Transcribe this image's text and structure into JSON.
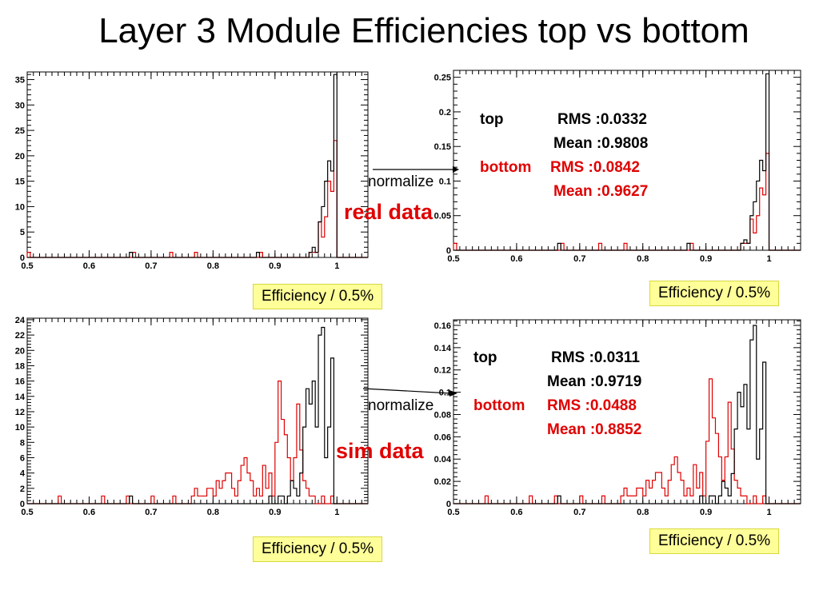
{
  "slide": {
    "title": "Layer 3 Module Efficiencies top vs bottom",
    "normalize_label": "normalize",
    "real_label": "real data",
    "sim_label": "sim data",
    "efficiency_label": "Efficiency / 0.5%"
  },
  "colors": {
    "top": "#000000",
    "bottom": "#e00000",
    "label_bg": "#ffff99"
  },
  "stats": {
    "real": {
      "top_label": "top",
      "top_rms": "RMS :0.0332",
      "top_mean": "Mean :0.9808",
      "bottom_label": "bottom",
      "bottom_rms": "RMS :0.0842",
      "bottom_mean": "Mean :0.9627"
    },
    "sim": {
      "top_label": "top",
      "top_rms": "RMS :0.0311",
      "top_mean": "Mean :0.9719",
      "bottom_label": "bottom",
      "bottom_rms": "RMS :0.0488",
      "bottom_mean": "Mean :0.8852"
    }
  },
  "chart_data": [
    {
      "id": "real-raw",
      "type": "histogram",
      "x_ticks": [
        "0.5",
        "0.6",
        "0.7",
        "0.8",
        "0.9",
        "1"
      ],
      "xlim": [
        0.5,
        1.05
      ],
      "ylim": [
        0,
        36.5
      ],
      "y_ticks": [
        "0",
        "5",
        "10",
        "15",
        "20",
        "25",
        "30",
        "35"
      ],
      "y_tick_values": [
        0,
        5,
        10,
        15,
        20,
        25,
        30,
        35
      ],
      "series": [
        {
          "role": "top",
          "bins": [
            [
              0.665,
              1
            ],
            [
              0.87,
              1
            ],
            [
              0.955,
              1
            ],
            [
              0.96,
              2
            ],
            [
              0.965,
              1
            ],
            [
              0.97,
              7
            ],
            [
              0.975,
              10
            ],
            [
              0.98,
              15
            ],
            [
              0.985,
              19
            ],
            [
              0.99,
              17
            ],
            [
              0.995,
              36
            ]
          ]
        },
        {
          "role": "bottom",
          "bins": [
            [
              0.5,
              1
            ],
            [
              0.67,
              1
            ],
            [
              0.73,
              1
            ],
            [
              0.77,
              1
            ],
            [
              0.875,
              1
            ],
            [
              0.955,
              1
            ],
            [
              0.96,
              1
            ],
            [
              0.965,
              1
            ],
            [
              0.97,
              7
            ],
            [
              0.975,
              4
            ],
            [
              0.98,
              8
            ],
            [
              0.985,
              15
            ],
            [
              0.99,
              13
            ],
            [
              0.995,
              23
            ]
          ]
        }
      ]
    },
    {
      "id": "real-norm",
      "type": "histogram",
      "x_ticks": [
        "0.5",
        "0.6",
        "0.7",
        "0.8",
        "0.9",
        "1"
      ],
      "xlim": [
        0.5,
        1.05
      ],
      "ylim": [
        0,
        0.26
      ],
      "y_ticks": [
        "0",
        "0.05",
        "0.1",
        "0.15",
        "0.2",
        "0.25"
      ],
      "y_tick_values": [
        0,
        0.05,
        0.1,
        0.15,
        0.2,
        0.25
      ],
      "series": [
        {
          "role": "top",
          "bins": [
            [
              0.665,
              0.01
            ],
            [
              0.87,
              0.01
            ],
            [
              0.955,
              0.01
            ],
            [
              0.96,
              0.015
            ],
            [
              0.965,
              0.01
            ],
            [
              0.97,
              0.05
            ],
            [
              0.975,
              0.07
            ],
            [
              0.98,
              0.1
            ],
            [
              0.985,
              0.13
            ],
            [
              0.99,
              0.115
            ],
            [
              0.995,
              0.255
            ]
          ]
        },
        {
          "role": "bottom",
          "bins": [
            [
              0.5,
              0.01
            ],
            [
              0.67,
              0.01
            ],
            [
              0.73,
              0.01
            ],
            [
              0.77,
              0.01
            ],
            [
              0.875,
              0.01
            ],
            [
              0.955,
              0.01
            ],
            [
              0.96,
              0.01
            ],
            [
              0.965,
              0.01
            ],
            [
              0.97,
              0.045
            ],
            [
              0.975,
              0.025
            ],
            [
              0.98,
              0.05
            ],
            [
              0.985,
              0.09
            ],
            [
              0.99,
              0.08
            ],
            [
              0.995,
              0.14
            ]
          ]
        }
      ]
    },
    {
      "id": "sim-raw",
      "type": "histogram",
      "x_ticks": [
        "0.5",
        "0.6",
        "0.7",
        "0.8",
        "0.9",
        "1"
      ],
      "xlim": [
        0.5,
        1.05
      ],
      "ylim": [
        0,
        24.2
      ],
      "y_ticks": [
        "0",
        "2",
        "4",
        "6",
        "8",
        "10",
        "12",
        "14",
        "16",
        "18",
        "20",
        "22",
        "24"
      ],
      "y_tick_values": [
        0,
        2,
        4,
        6,
        8,
        10,
        12,
        14,
        16,
        18,
        20,
        22,
        24
      ],
      "series": [
        {
          "role": "top",
          "bins": [
            [
              0.665,
              1
            ],
            [
              0.89,
              1
            ],
            [
              0.905,
              1
            ],
            [
              0.91,
              1
            ],
            [
              0.92,
              1
            ],
            [
              0.925,
              3
            ],
            [
              0.93,
              2
            ],
            [
              0.935,
              1
            ],
            [
              0.94,
              4
            ],
            [
              0.945,
              10
            ],
            [
              0.95,
              15
            ],
            [
              0.955,
              13
            ],
            [
              0.96,
              16
            ],
            [
              0.965,
              10
            ],
            [
              0.97,
              22
            ],
            [
              0.975,
              23
            ],
            [
              0.98,
              6
            ],
            [
              0.985,
              10
            ],
            [
              0.99,
              19
            ]
          ]
        },
        {
          "role": "bottom",
          "bins": [
            [
              0.55,
              1
            ],
            [
              0.62,
              1
            ],
            [
              0.66,
              1
            ],
            [
              0.7,
              1
            ],
            [
              0.735,
              1
            ],
            [
              0.765,
              1
            ],
            [
              0.77,
              2
            ],
            [
              0.775,
              1
            ],
            [
              0.78,
              1
            ],
            [
              0.785,
              1
            ],
            [
              0.79,
              2
            ],
            [
              0.795,
              2
            ],
            [
              0.8,
              1
            ],
            [
              0.805,
              3
            ],
            [
              0.81,
              2
            ],
            [
              0.815,
              3
            ],
            [
              0.82,
              4
            ],
            [
              0.825,
              4
            ],
            [
              0.83,
              2
            ],
            [
              0.835,
              1
            ],
            [
              0.84,
              3
            ],
            [
              0.845,
              5
            ],
            [
              0.85,
              6
            ],
            [
              0.855,
              4
            ],
            [
              0.86,
              3
            ],
            [
              0.865,
              1
            ],
            [
              0.87,
              2
            ],
            [
              0.875,
              1
            ],
            [
              0.88,
              5
            ],
            [
              0.885,
              2
            ],
            [
              0.89,
              4
            ],
            [
              0.895,
              1
            ],
            [
              0.9,
              8
            ],
            [
              0.905,
              16
            ],
            [
              0.91,
              11
            ],
            [
              0.915,
              9
            ],
            [
              0.92,
              6
            ],
            [
              0.925,
              3
            ],
            [
              0.93,
              6
            ],
            [
              0.935,
              13
            ],
            [
              0.94,
              7
            ],
            [
              0.945,
              3
            ],
            [
              0.95,
              2
            ],
            [
              0.955,
              1
            ],
            [
              0.96,
              1
            ],
            [
              0.975,
              1
            ],
            [
              0.99,
              1
            ]
          ]
        }
      ]
    },
    {
      "id": "sim-norm",
      "type": "histogram",
      "x_ticks": [
        "0.5",
        "0.6",
        "0.7",
        "0.8",
        "0.9",
        "1"
      ],
      "xlim": [
        0.5,
        1.05
      ],
      "ylim": [
        0,
        0.165
      ],
      "y_ticks": [
        "0",
        "0.02",
        "0.04",
        "0.06",
        "0.08",
        "0.1",
        "0.12",
        "0.14",
        "0.16"
      ],
      "y_tick_values": [
        0,
        0.02,
        0.04,
        0.06,
        0.08,
        0.1,
        0.12,
        0.14,
        0.16
      ],
      "series": [
        {
          "role": "top",
          "bins": [
            [
              0.665,
              0.007
            ],
            [
              0.89,
              0.007
            ],
            [
              0.905,
              0.007
            ],
            [
              0.91,
              0.007
            ],
            [
              0.92,
              0.007
            ],
            [
              0.925,
              0.02
            ],
            [
              0.93,
              0.014
            ],
            [
              0.935,
              0.007
            ],
            [
              0.94,
              0.027
            ],
            [
              0.945,
              0.067
            ],
            [
              0.95,
              0.1
            ],
            [
              0.955,
              0.087
            ],
            [
              0.96,
              0.107
            ],
            [
              0.965,
              0.067
            ],
            [
              0.97,
              0.147
            ],
            [
              0.975,
              0.16
            ],
            [
              0.98,
              0.04
            ],
            [
              0.985,
              0.067
            ],
            [
              0.99,
              0.127
            ]
          ]
        },
        {
          "role": "bottom",
          "bins": [
            [
              0.55,
              0.007
            ],
            [
              0.62,
              0.007
            ],
            [
              0.66,
              0.007
            ],
            [
              0.7,
              0.007
            ],
            [
              0.735,
              0.007
            ],
            [
              0.765,
              0.007
            ],
            [
              0.77,
              0.014
            ],
            [
              0.775,
              0.007
            ],
            [
              0.78,
              0.007
            ],
            [
              0.785,
              0.007
            ],
            [
              0.79,
              0.014
            ],
            [
              0.795,
              0.014
            ],
            [
              0.8,
              0.007
            ],
            [
              0.805,
              0.021
            ],
            [
              0.81,
              0.014
            ],
            [
              0.815,
              0.021
            ],
            [
              0.82,
              0.028
            ],
            [
              0.825,
              0.028
            ],
            [
              0.83,
              0.014
            ],
            [
              0.835,
              0.007
            ],
            [
              0.84,
              0.021
            ],
            [
              0.845,
              0.035
            ],
            [
              0.85,
              0.042
            ],
            [
              0.855,
              0.028
            ],
            [
              0.86,
              0.021
            ],
            [
              0.865,
              0.007
            ],
            [
              0.87,
              0.014
            ],
            [
              0.875,
              0.007
            ],
            [
              0.88,
              0.035
            ],
            [
              0.885,
              0.014
            ],
            [
              0.89,
              0.028
            ],
            [
              0.895,
              0.007
            ],
            [
              0.9,
              0.056
            ],
            [
              0.905,
              0.112
            ],
            [
              0.91,
              0.077
            ],
            [
              0.915,
              0.063
            ],
            [
              0.92,
              0.042
            ],
            [
              0.925,
              0.021
            ],
            [
              0.93,
              0.042
            ],
            [
              0.935,
              0.091
            ],
            [
              0.94,
              0.049
            ],
            [
              0.945,
              0.021
            ],
            [
              0.95,
              0.014
            ],
            [
              0.955,
              0.007
            ],
            [
              0.96,
              0.007
            ],
            [
              0.975,
              0.007
            ],
            [
              0.99,
              0.007
            ]
          ]
        }
      ]
    }
  ]
}
